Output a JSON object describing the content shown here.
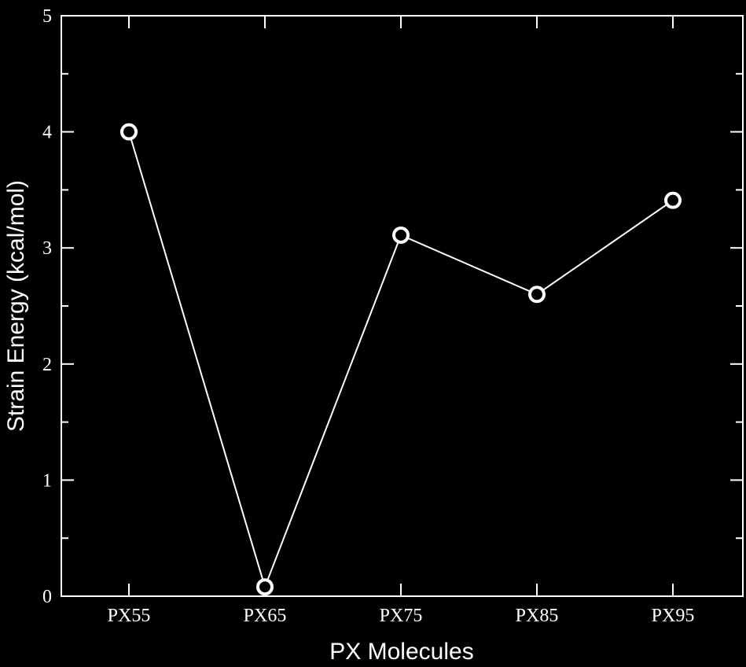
{
  "chart_data": {
    "type": "line",
    "title": "",
    "xlabel": "PX Molecules",
    "ylabel": "Strain Energy (kcal/mol)",
    "categories": [
      "PX55",
      "PX65",
      "PX75",
      "PX85",
      "PX95"
    ],
    "series": [
      {
        "values": [
          4.0,
          0.08,
          3.11,
          2.6,
          3.41
        ],
        "marker": "open-circle",
        "color": "#ffffff"
      }
    ],
    "ylim": [
      0,
      5
    ],
    "yticks": [
      "0",
      "1",
      "2",
      "3",
      "4",
      "5"
    ],
    "grid": false,
    "legend": "none",
    "background": "#000000",
    "foreground": "#ffffff"
  }
}
